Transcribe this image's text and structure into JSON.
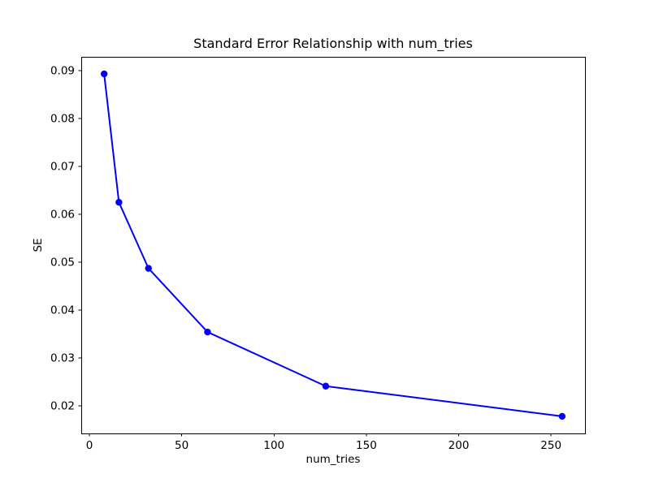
{
  "figure": {
    "background": "#ffffff",
    "text_color": "#000000",
    "spine_color": "#000000"
  },
  "chart_data": {
    "type": "line",
    "title": "Standard Error Relationship with num_tries",
    "xlabel": "num_tries",
    "ylabel": "SE",
    "x": [
      8,
      16,
      32,
      64,
      128,
      256
    ],
    "y": [
      0.0893,
      0.0625,
      0.0487,
      0.0354,
      0.0241,
      0.0178
    ],
    "series": [
      {
        "name": "SE",
        "values": [
          0.0893,
          0.0625,
          0.0487,
          0.0354,
          0.0241,
          0.0178
        ]
      }
    ],
    "line_color": "#0000ff",
    "marker": "o",
    "marker_color": "#0000ff",
    "xlim": [
      -4.4,
      268.4
    ],
    "ylim": [
      0.014225,
      0.092875
    ],
    "x_ticks": [
      0,
      50,
      100,
      150,
      200,
      250
    ],
    "y_ticks": [
      0.02,
      0.03,
      0.04,
      0.05,
      0.06,
      0.07,
      0.08,
      0.09
    ],
    "y_tick_decimals": 2,
    "grid": false,
    "legend": null
  }
}
